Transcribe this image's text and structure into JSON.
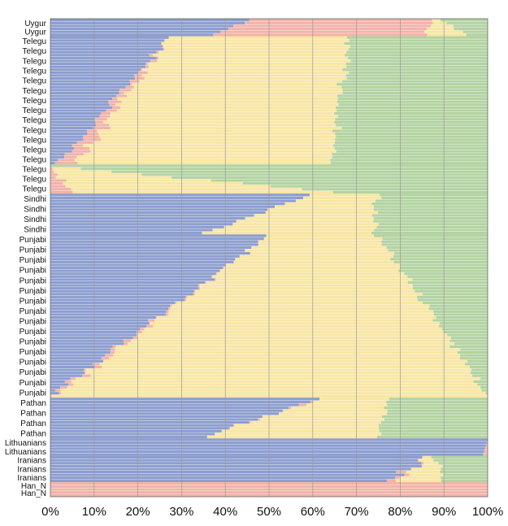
{
  "chart_data": {
    "type": "bar",
    "orientation": "horizontal",
    "stacked": true,
    "normalized": true,
    "xlim": [
      0,
      100
    ],
    "x_ticks": [
      "0%",
      "10%",
      "20%",
      "30%",
      "40%",
      "50%",
      "60%",
      "70%",
      "80%",
      "90%",
      "100%"
    ],
    "grid": "vertical",
    "component_order": [
      "blue",
      "pink",
      "yellow",
      "green"
    ],
    "colors": {
      "blue": "#8d9ecf",
      "pink": "#f2b3a8",
      "yellow": "#f8e6a5",
      "green": "#b3d3a2",
      "separator": "#ffffff",
      "grid": "#9a9a9a",
      "frame": "#666666"
    },
    "groups": [
      {
        "name": "Uygur",
        "rows": 6,
        "labels": [
          "Uygur",
          "Uygur"
        ],
        "start": {
          "blue": 45,
          "pink": 41,
          "yellow": 3,
          "green": 11
        },
        "end": {
          "blue": 38,
          "pink": 49,
          "yellow": 9,
          "green": 4
        }
      },
      {
        "name": "Telegu",
        "rows": 44,
        "labels": [
          "Telegu",
          "Telegu",
          "Telegu",
          "Telegu",
          "Telegu",
          "Telegu",
          "Telegu",
          "Telegu",
          "Telegu",
          "Telegu",
          "Telegu",
          "Telegu",
          "Telegu"
        ],
        "start": {
          "blue": 27,
          "pink": 0,
          "yellow": 41,
          "green": 32
        },
        "end": {
          "blue": 2,
          "pink": 4,
          "yellow": 58,
          "green": 36
        }
      },
      {
        "name": "Telegu",
        "rows": 10,
        "labels": [
          "Telegu",
          "Telegu",
          "Telegu"
        ],
        "start": {
          "blue": 0,
          "pink": 0,
          "yellow": 0,
          "green": 100
        },
        "end": {
          "blue": 0,
          "pink": 5,
          "yellow": 60,
          "green": 35
        }
      },
      {
        "name": "Sindhi",
        "rows": 14,
        "labels": [
          "Sindhi",
          "Sindhi",
          "Sindhi",
          "Sindhi"
        ],
        "start": {
          "blue": 60,
          "pink": 0,
          "yellow": 15,
          "green": 25
        },
        "end": {
          "blue": 36,
          "pink": 0,
          "yellow": 38,
          "green": 26
        }
      },
      {
        "name": "Punjabi",
        "rows": 56,
        "labels": [
          "Punjabi",
          "Punjabi",
          "Punjabi",
          "Punjabi",
          "Punjabi",
          "Punjabi",
          "Punjabi",
          "Punjabi",
          "Punjabi",
          "Punjabi",
          "Punjabi",
          "Punjabi",
          "Punjabi",
          "Punjabi",
          "Punjabi",
          "Punjabi"
        ],
        "start": {
          "blue": 50,
          "pink": 0,
          "yellow": 25,
          "green": 25
        },
        "end": {
          "blue": 0,
          "pink": 1,
          "yellow": 99,
          "green": 0
        }
      },
      {
        "name": "Pathan",
        "rows": 14,
        "labels": [
          "Pathan",
          "Pathan",
          "Pathan",
          "Pathan"
        ],
        "start": {
          "blue": 61,
          "pink": 1,
          "yellow": 16,
          "green": 22
        },
        "end": {
          "blue": 35,
          "pink": 0,
          "yellow": 40,
          "green": 25
        }
      },
      {
        "name": "Lithuanians",
        "rows": 6,
        "labels": [
          "Lithuanians",
          "Lithuanians"
        ],
        "start": {
          "blue": 100,
          "pink": 0,
          "yellow": 0,
          "green": 0
        },
        "end": {
          "blue": 99,
          "pink": 1,
          "yellow": 0,
          "green": 0
        }
      },
      {
        "name": "Iranians",
        "rows": 9,
        "labels": [
          "Iranians",
          "Iranians",
          "Iranians"
        ],
        "start": {
          "blue": 86,
          "pink": 0,
          "yellow": 2,
          "green": 12
        },
        "end": {
          "blue": 78,
          "pink": 2,
          "yellow": 10,
          "green": 10
        }
      },
      {
        "name": "Han_N",
        "rows": 5,
        "labels": [
          "Han_N",
          "Han_N"
        ],
        "start": {
          "blue": 0,
          "pink": 100,
          "yellow": 0,
          "green": 0
        },
        "end": {
          "blue": 0,
          "pink": 100,
          "yellow": 0,
          "green": 0
        }
      }
    ]
  }
}
